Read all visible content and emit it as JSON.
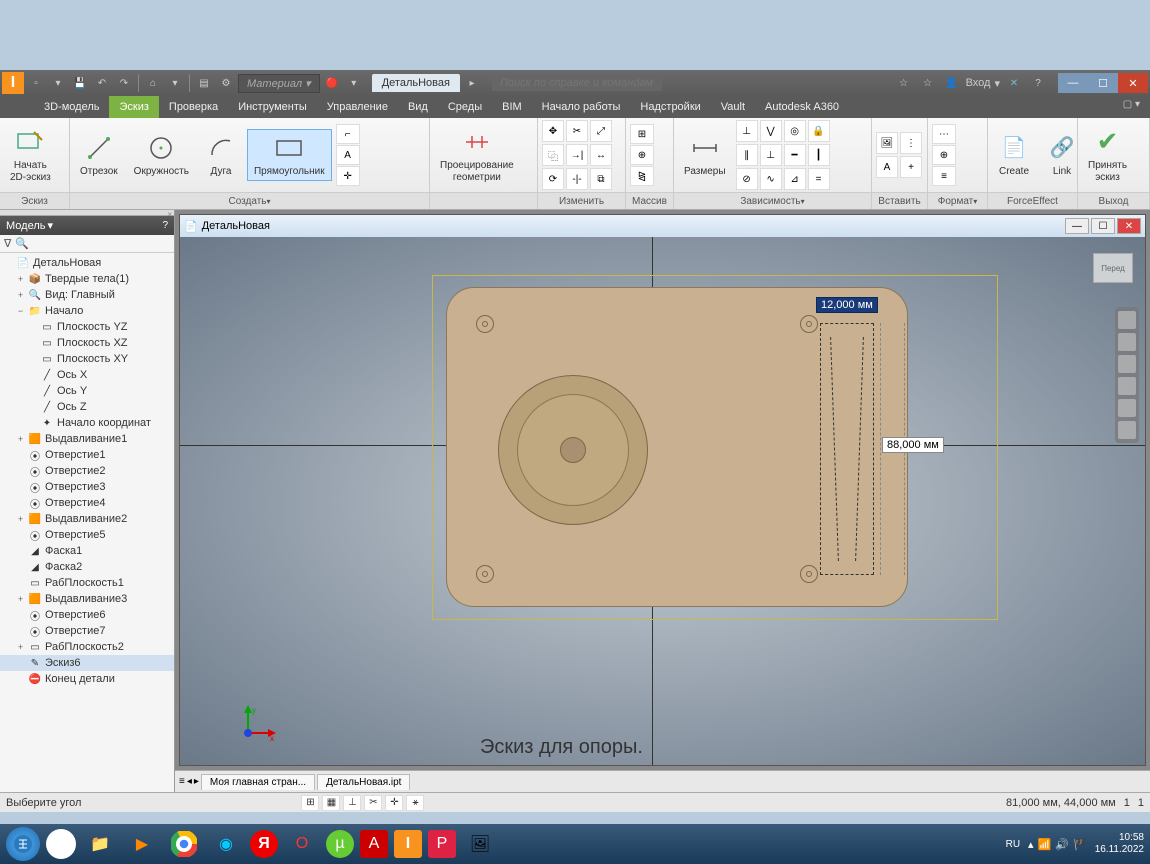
{
  "qat": {
    "material_placeholder": "Материал",
    "doc_tab": "ДетальНовая",
    "search_placeholder": "Поиск по справке и командам",
    "login": "Вход"
  },
  "tabs": {
    "items": [
      "3D-модель",
      "Эскиз",
      "Проверка",
      "Инструменты",
      "Управление",
      "Вид",
      "Среды",
      "BIM",
      "Начало работы",
      "Надстройки",
      "Vault",
      "Autodesk A360"
    ],
    "active_index": 1
  },
  "ribbon": {
    "sketch": {
      "start": "Начать\n2D-эскиз",
      "label": "Эскиз"
    },
    "create": {
      "line": "Отрезок",
      "circle": "Окружность",
      "arc": "Дуга",
      "rect": "Прямоугольник",
      "label": "Создать"
    },
    "project": {
      "btn": "Проецирование\nгеометрии"
    },
    "modify": {
      "label": "Изменить"
    },
    "pattern": {
      "label": "Массив"
    },
    "dims": {
      "btn": "Размеры",
      "label": "Зависимость"
    },
    "insert": {
      "label": "Вставить"
    },
    "format": {
      "label": "Формат"
    },
    "force": {
      "create": "Create",
      "link": "Link",
      "label": "ForceEffect"
    },
    "exit": {
      "btn": "Принять\nэскиз",
      "label": "Выход"
    }
  },
  "browser": {
    "title": "Модель",
    "root": "ДетальНовая",
    "items": [
      {
        "t": "Твердые тела(1)",
        "d": 1,
        "tw": "+",
        "i": "📦"
      },
      {
        "t": "Вид: Главный",
        "d": 1,
        "tw": "+",
        "i": "🔍"
      },
      {
        "t": "Начало",
        "d": 1,
        "tw": "−",
        "i": "📁"
      },
      {
        "t": "Плоскость YZ",
        "d": 2,
        "i": "▭"
      },
      {
        "t": "Плоскость XZ",
        "d": 2,
        "i": "▭"
      },
      {
        "t": "Плоскость XY",
        "d": 2,
        "i": "▭"
      },
      {
        "t": "Ось X",
        "d": 2,
        "i": "╱"
      },
      {
        "t": "Ось Y",
        "d": 2,
        "i": "╱"
      },
      {
        "t": "Ось Z",
        "d": 2,
        "i": "╱"
      },
      {
        "t": "Начало координат",
        "d": 2,
        "i": "✦"
      },
      {
        "t": "Выдавливание1",
        "d": 1,
        "tw": "+",
        "i": "🟧"
      },
      {
        "t": "Отверстие1",
        "d": 1,
        "i": "⦿"
      },
      {
        "t": "Отверстие2",
        "d": 1,
        "i": "⦿"
      },
      {
        "t": "Отверстие3",
        "d": 1,
        "i": "⦿"
      },
      {
        "t": "Отверстие4",
        "d": 1,
        "i": "⦿"
      },
      {
        "t": "Выдавливание2",
        "d": 1,
        "tw": "+",
        "i": "🟧"
      },
      {
        "t": "Отверстие5",
        "d": 1,
        "i": "⦿"
      },
      {
        "t": "Фаска1",
        "d": 1,
        "i": "◢"
      },
      {
        "t": "Фаска2",
        "d": 1,
        "i": "◢"
      },
      {
        "t": "РабПлоскость1",
        "d": 1,
        "i": "▭"
      },
      {
        "t": "Выдавливание3",
        "d": 1,
        "tw": "+",
        "i": "🟧"
      },
      {
        "t": "Отверстие6",
        "d": 1,
        "i": "⦿"
      },
      {
        "t": "Отверстие7",
        "d": 1,
        "i": "⦿"
      },
      {
        "t": "РабПлоскость2",
        "d": 1,
        "tw": "+",
        "i": "▭"
      },
      {
        "t": "Эскиз6",
        "d": 1,
        "i": "✎",
        "sel": true
      },
      {
        "t": "Конец детали",
        "d": 1,
        "i": "⛔"
      }
    ]
  },
  "doc": {
    "title": "ДетальНовая",
    "caption": "Эскиз для опоры.",
    "dim_width": "12,000 мм",
    "dim_height": "88,000 мм",
    "viewcube": "Перед",
    "tabs": {
      "home": "Моя главная стран...",
      "file": "ДетальНовая.ipt"
    }
  },
  "status": {
    "prompt": "Выберите угол",
    "coords": "81,000 мм, 44,000 мм",
    "n1": "1",
    "n2": "1"
  },
  "taskbar": {
    "lang": "RU",
    "time": "10:58",
    "date": "16.11.2022"
  },
  "colors": {
    "accent_green": "#7cb342",
    "inventor_orange": "#f7931e",
    "dim_blue": "#1a3a7a",
    "plate": "#c8b090"
  }
}
